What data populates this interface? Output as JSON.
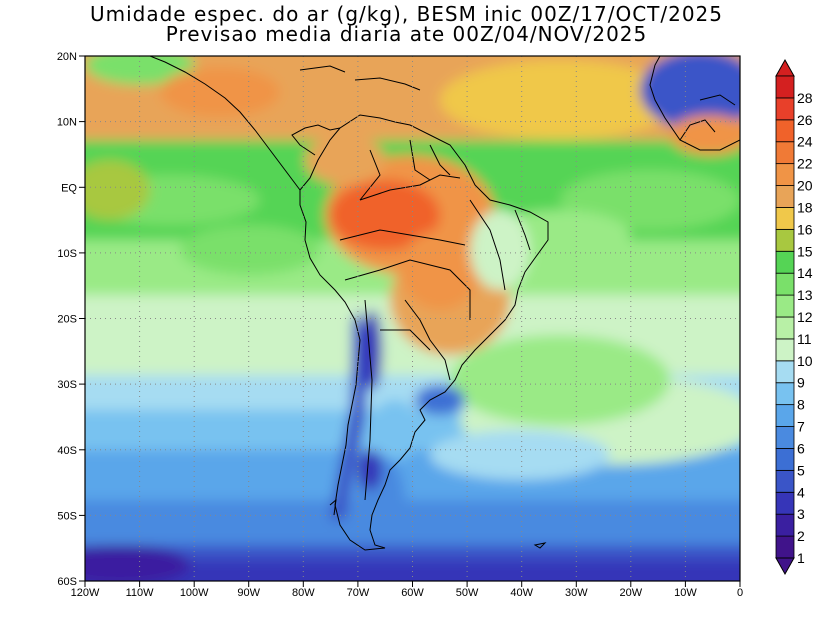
{
  "title": {
    "line1": "Umidade espec. do ar (g/kg), BESM inic 00Z/17/OCT/2025",
    "line2": "Previsao media diaria ate 00Z/04/NOV/2025"
  },
  "map": {
    "lon_labels": [
      "120W",
      "110W",
      "100W",
      "90W",
      "80W",
      "70W",
      "60W",
      "50W",
      "40W",
      "30W",
      "20W",
      "10W",
      "0"
    ],
    "lat_labels": [
      "20N",
      "10N",
      "EQ",
      "10S",
      "20S",
      "30S",
      "40S",
      "50S",
      "60S"
    ],
    "extent": {
      "lon_min": -120,
      "lon_max": 0,
      "lat_min": -60,
      "lat_max": 20
    }
  },
  "colorbar": {
    "levels": [
      "1",
      "2",
      "3",
      "4",
      "5",
      "6",
      "7",
      "8",
      "9",
      "10",
      "11",
      "12",
      "13",
      "14",
      "15",
      "16",
      "18",
      "20",
      "22",
      "24",
      "26",
      "28"
    ],
    "colors": [
      "#40138a",
      "#3a1fa0",
      "#3635b8",
      "#3a55c8",
      "#3c6fd4",
      "#4a8ae0",
      "#5aa6ea",
      "#78c2f0",
      "#a6dcf2",
      "#cdf3c6",
      "#b8f0a6",
      "#9aea86",
      "#7ae06a",
      "#55d455",
      "#a8c840",
      "#f0c84a",
      "#e8a458",
      "#f09446",
      "#f07a36",
      "#f0622a",
      "#e8402a",
      "#d42020"
    ]
  },
  "colors": {
    "ocean_cold": "#3c6fd4",
    "ocean_mid": "#a6dcf2",
    "ocean_warm": "#7ae06a",
    "moist_land": "#f0622a",
    "dry_tropics": "#e8a458"
  }
}
